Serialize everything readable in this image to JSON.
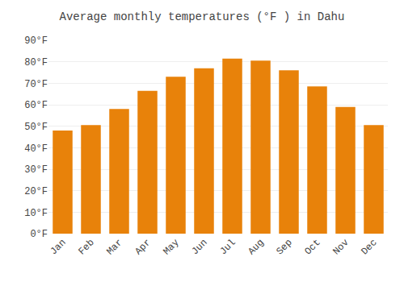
{
  "chart_data": {
    "type": "bar",
    "title": "Average monthly temperatures (°F ) in Dahu",
    "categories": [
      "Jan",
      "Feb",
      "Mar",
      "Apr",
      "May",
      "Jun",
      "Jul",
      "Aug",
      "Sep",
      "Oct",
      "Nov",
      "Dec"
    ],
    "values": [
      48,
      50.5,
      58,
      66.5,
      73,
      77,
      81.5,
      80.5,
      76,
      68.5,
      59,
      50.5
    ],
    "color": "#E8820A",
    "ylim": [
      0,
      90
    ],
    "yticks": [
      {
        "value": 0,
        "label": "0°F"
      },
      {
        "value": 10,
        "label": "10°F"
      },
      {
        "value": 20,
        "label": "20°F"
      },
      {
        "value": 30,
        "label": "30°F"
      },
      {
        "value": 40,
        "label": "40°F"
      },
      {
        "value": 50,
        "label": "50°F"
      },
      {
        "value": 60,
        "label": "60°F"
      },
      {
        "value": 70,
        "label": "70°F"
      },
      {
        "value": 80,
        "label": "80°F"
      },
      {
        "value": 90,
        "label": "90°F"
      }
    ],
    "grid": true
  }
}
